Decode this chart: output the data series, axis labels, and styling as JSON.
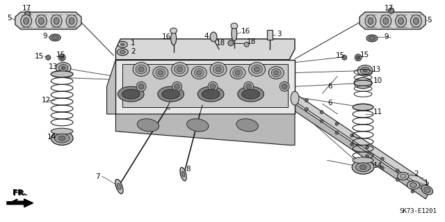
{
  "part_code": "SK73-E1201",
  "background_color": "#ffffff",
  "line_color": "#1a1a1a",
  "figsize": [
    6.4,
    3.19
  ],
  "dpi": 100,
  "gray_dark": "#404040",
  "gray_mid": "#808080",
  "gray_light": "#c0c0c0",
  "gray_fill": "#d8d8d8",
  "gray_body": "#b8b8b8"
}
